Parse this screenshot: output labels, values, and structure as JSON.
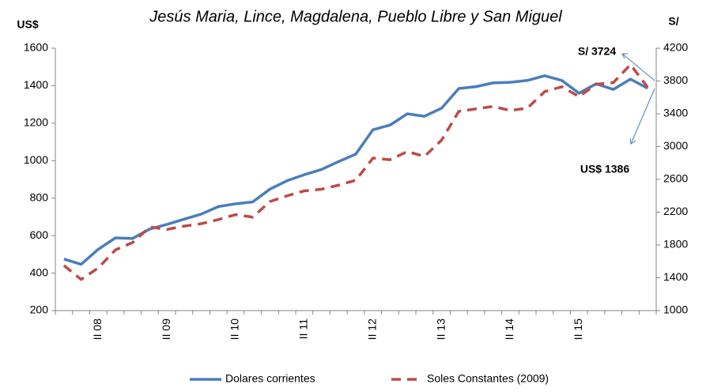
{
  "chart_data": {
    "type": "line",
    "subtitle": "Jesús Maria, Lince, Magdalena, Pueblo Libre y San Miguel",
    "y_label": "US$",
    "y2_label": "S/",
    "categories": [
      null,
      null,
      "II 08",
      null,
      null,
      null,
      "II 09",
      null,
      null,
      null,
      "II 10",
      null,
      null,
      null,
      "II 11",
      null,
      null,
      null,
      "II 12",
      null,
      null,
      null,
      "II 13",
      null,
      null,
      null,
      "II 14",
      null,
      null,
      null,
      "II 15",
      null,
      null,
      null,
      null
    ],
    "series": [
      {
        "name": "Dolares corrientes",
        "color": "#4a7ebb",
        "dash": false,
        "values": [
          475,
          447,
          527,
          588,
          585,
          635,
          660,
          688,
          715,
          755,
          770,
          780,
          848,
          893,
          925,
          953,
          995,
          1035,
          1165,
          1190,
          1250,
          1237,
          1280,
          1385,
          1395,
          1415,
          1418,
          1428,
          1453,
          1428,
          1360,
          1410,
          1380,
          1435,
          1386
        ]
      },
      {
        "name": "Soles Constantes (2009)",
        "color": "#be4b48",
        "dash": true,
        "axis": "y2",
        "values": [
          1550,
          1380,
          1520,
          1740,
          1830,
          2020,
          1990,
          2030,
          2060,
          2110,
          2170,
          2140,
          2330,
          2400,
          2460,
          2480,
          2530,
          2590,
          2860,
          2840,
          2940,
          2880,
          3080,
          3430,
          3460,
          3490,
          3440,
          3470,
          3670,
          3730,
          3610,
          3760,
          3780,
          4000,
          3724
        ]
      }
    ],
    "ylim": [
      200,
      1600
    ],
    "yticks": [
      200,
      400,
      600,
      800,
      1000,
      1200,
      1400,
      1600
    ],
    "y2lim": [
      1000,
      4200
    ],
    "y2ticks": [
      1000,
      1400,
      1800,
      2200,
      2600,
      3000,
      3400,
      3800,
      4200
    ],
    "annotations": [
      "S/ 3724",
      "US$ 1386"
    ],
    "legend": "bottom"
  }
}
